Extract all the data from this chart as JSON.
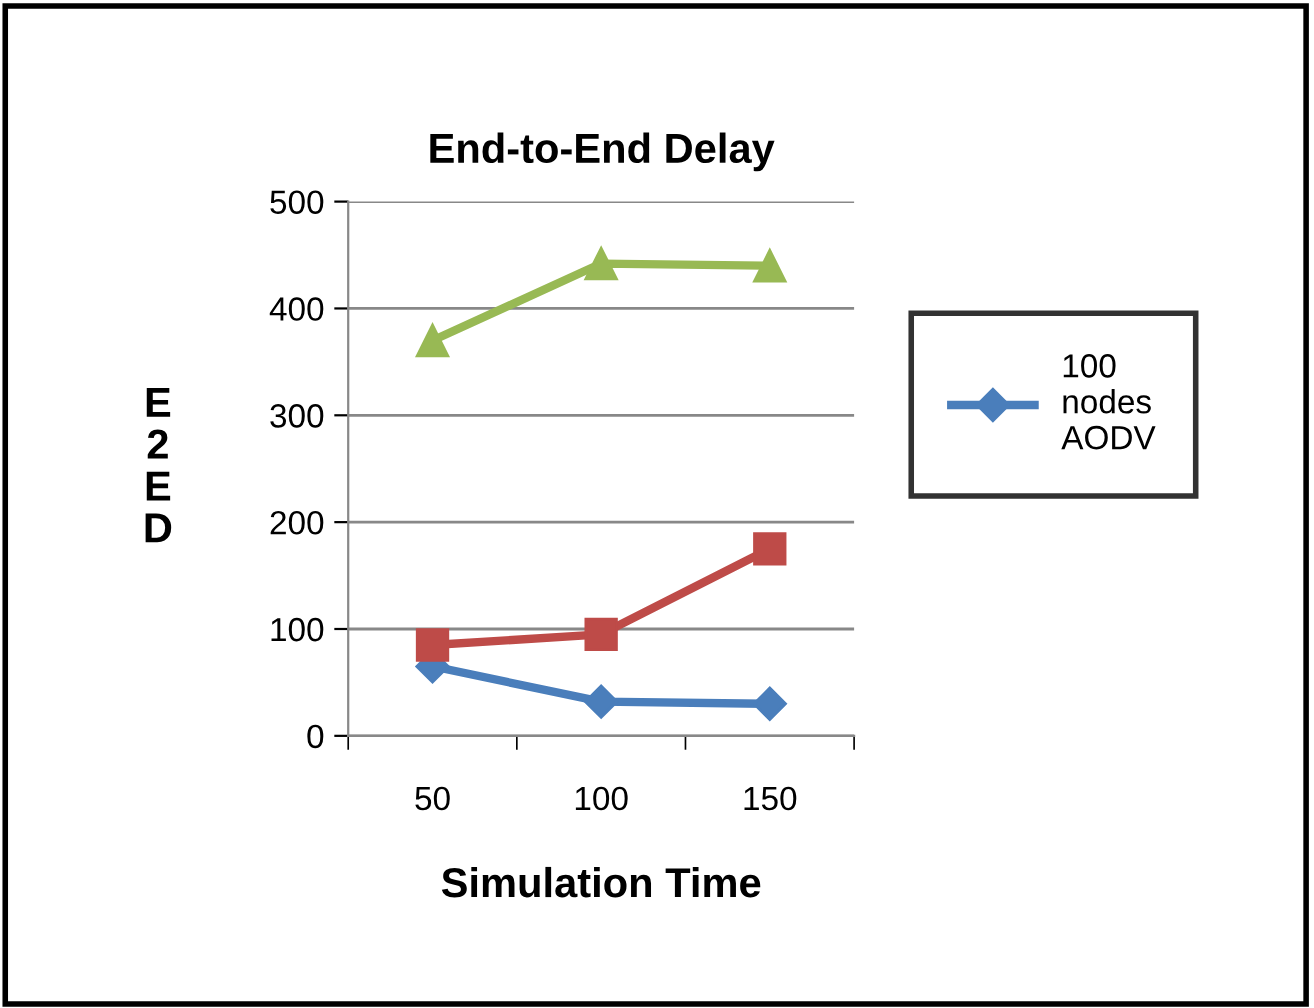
{
  "chart_data": {
    "type": "line",
    "title": "End-to-End Delay",
    "xlabel": "Simulation Time",
    "ylabel": "E2ED",
    "categories": [
      "50",
      "100",
      "150"
    ],
    "series": [
      {
        "name": "100 nodes AODV",
        "color": "#4a7ebb",
        "marker": "diamond",
        "values": [
          65,
          32,
          30
        ]
      },
      {
        "color": "#be4b48",
        "marker": "square",
        "values": [
          85,
          95,
          175
        ]
      },
      {
        "color": "#98b954",
        "marker": "triangle",
        "values": [
          370,
          442,
          440
        ]
      }
    ],
    "ylim": [
      0,
      500
    ],
    "yticks": [
      0,
      100,
      200,
      300,
      400,
      500
    ],
    "grid": "y",
    "legend": "right",
    "line_style": "solid"
  }
}
